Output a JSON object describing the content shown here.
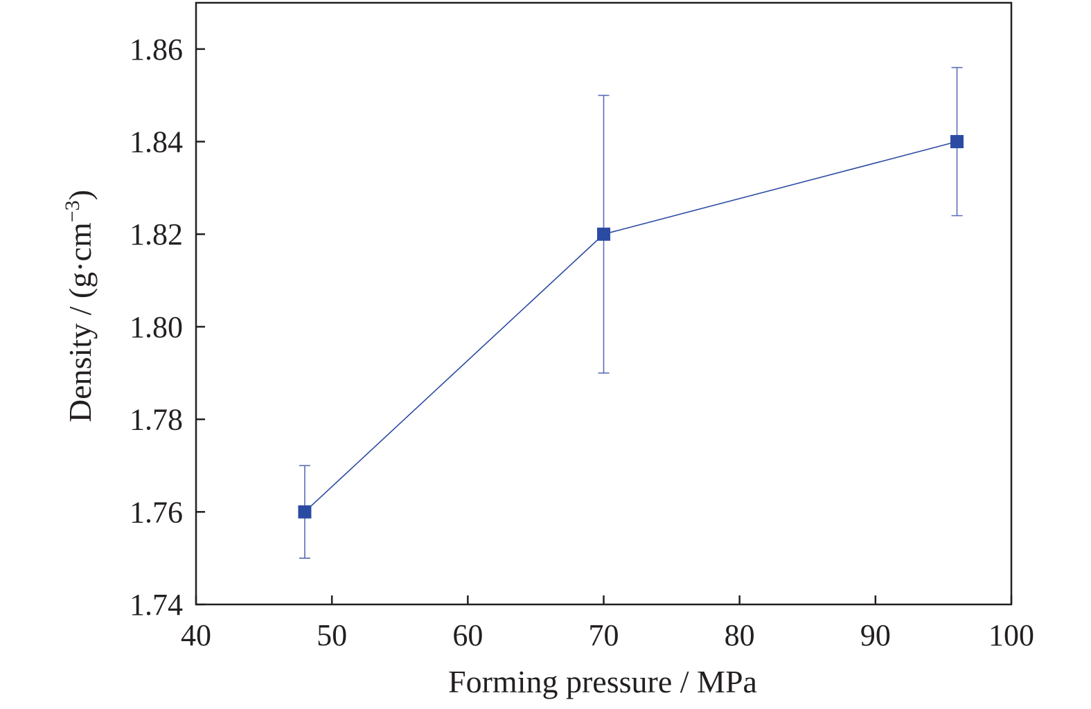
{
  "chart_data": {
    "type": "line",
    "title": "",
    "xlabel": "Forming pressure / MPa",
    "ylabel_main": "Density / (g·cm",
    "ylabel_sup": "−3",
    "ylabel_close": ")",
    "xlim": [
      40,
      100
    ],
    "ylim": [
      1.74,
      1.87
    ],
    "xticks": [
      "40",
      "50",
      "60",
      "70",
      "80",
      "90",
      "100"
    ],
    "yticks": [
      "1.74",
      "1.76",
      "1.78",
      "1.80",
      "1.82",
      "1.84",
      "1.86"
    ],
    "grid": false,
    "legend": "none",
    "series": [
      {
        "color": "#2b4ba3",
        "marker": "square",
        "points": [
          {
            "x": 48,
            "y": 1.76,
            "err_low": 1.75,
            "err_high": 1.77
          },
          {
            "x": 70,
            "y": 1.82,
            "err_low": 1.79,
            "err_high": 1.85
          },
          {
            "x": 96,
            "y": 1.84,
            "err_low": 1.824,
            "err_high": 1.856
          }
        ]
      }
    ],
    "colors": {
      "axis": "#231f20",
      "series": "#2b4ba3",
      "errorbar": "#5a6cb8"
    }
  }
}
